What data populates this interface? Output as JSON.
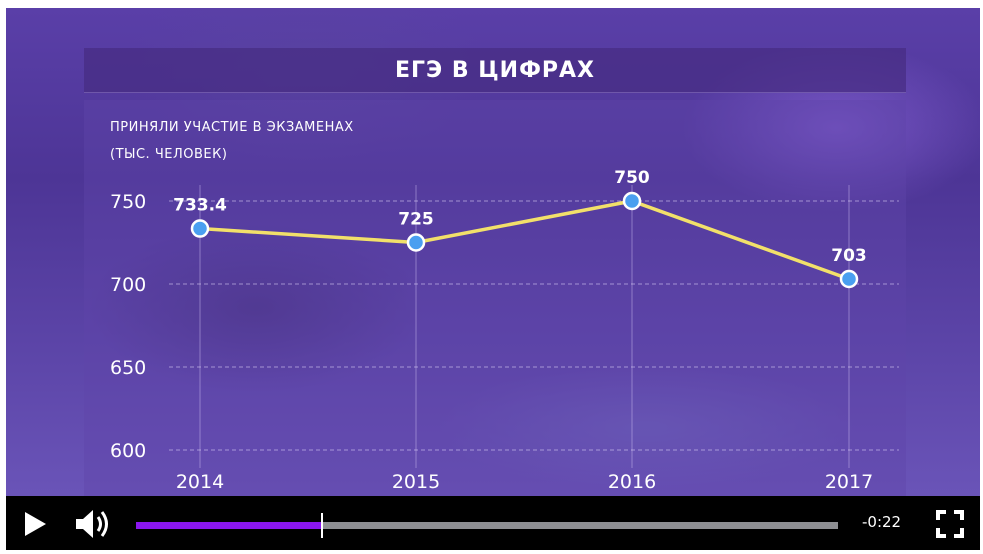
{
  "chart": {
    "title": "ЕГЭ В ЦИФРАХ",
    "subtitle_line1": "ПРИНЯЛИ УЧАСТИЕ В ЭКЗАМЕНАХ",
    "subtitle_line2": "(ТЫС. ЧЕЛОВЕК)"
  },
  "chart_data": {
    "type": "line",
    "title": "ЕГЭ В ЦИФРАХ",
    "subtitle": "ПРИНЯЛИ УЧАСТИЕ В ЭКЗАМЕНАХ (ТЫС. ЧЕЛОВЕК)",
    "categories": [
      "2014",
      "2015",
      "2016",
      "2017"
    ],
    "values": [
      733.4,
      725,
      750,
      703
    ],
    "data_labels": [
      "733.4",
      "725",
      "750",
      "703"
    ],
    "y_ticks": [
      600,
      650,
      700,
      750
    ],
    "y_tick_labels": [
      "600",
      "650",
      "700",
      "750"
    ],
    "ylim": [
      600,
      750
    ],
    "grid": true,
    "line_color": "#f2e06a",
    "point_color": "#4a9ff0"
  },
  "player": {
    "time_remaining": "-0:22",
    "progress": 0.265,
    "accent_color": "#8a16ee",
    "icons": {
      "play": "play-icon",
      "volume": "volume-icon",
      "fullscreen": "fullscreen-icon"
    }
  }
}
